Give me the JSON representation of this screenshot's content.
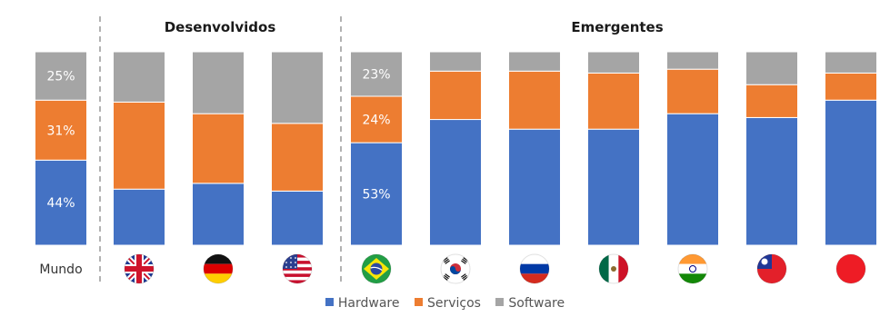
{
  "chart_data": {
    "type": "bar",
    "stacked": true,
    "percent_stacked": true,
    "groups": [
      {
        "title": "Desenvolvidos"
      },
      {
        "title": "Emergentes"
      }
    ],
    "categories": [
      {
        "label": "Mundo",
        "flag": "world-label"
      },
      {
        "label": "",
        "flag": "uk-flag-icon"
      },
      {
        "label": "",
        "flag": "germany-flag-icon"
      },
      {
        "label": "",
        "flag": "usa-flag-icon"
      },
      {
        "label": "",
        "flag": "brazil-flag-icon"
      },
      {
        "label": "",
        "flag": "south-korea-flag-icon"
      },
      {
        "label": "",
        "flag": "russia-flag-icon"
      },
      {
        "label": "",
        "flag": "mexico-flag-icon"
      },
      {
        "label": "",
        "flag": "india-flag-icon"
      },
      {
        "label": "",
        "flag": "taiwan-flag-icon"
      },
      {
        "label": "",
        "flag": "china-flag-icon"
      }
    ],
    "series": [
      {
        "name": "Hardware",
        "color": "#4472C4",
        "values": [
          44,
          29,
          32,
          28,
          53,
          65,
          60,
          60,
          68,
          66,
          75
        ],
        "labels": [
          "44%",
          "",
          "",
          "",
          "53%",
          "",
          "",
          "",
          "",
          "",
          ""
        ]
      },
      {
        "name": "Serviços",
        "color": "#ED7D31",
        "values": [
          31,
          45,
          36,
          35,
          24,
          25,
          30,
          29,
          23,
          17,
          14
        ],
        "labels": [
          "31%",
          "",
          "",
          "",
          "24%",
          "",
          "",
          "",
          "",
          "",
          ""
        ]
      },
      {
        "name": "Software",
        "color": "#A5A5A5",
        "values": [
          25,
          26,
          32,
          37,
          23,
          10,
          10,
          11,
          9,
          17,
          11
        ],
        "labels": [
          "25%",
          "",
          "",
          "",
          "23%",
          "",
          "",
          "",
          "",
          "",
          ""
        ]
      }
    ],
    "ylim": [
      0,
      100
    ],
    "grid": false,
    "legend": "bottom"
  }
}
